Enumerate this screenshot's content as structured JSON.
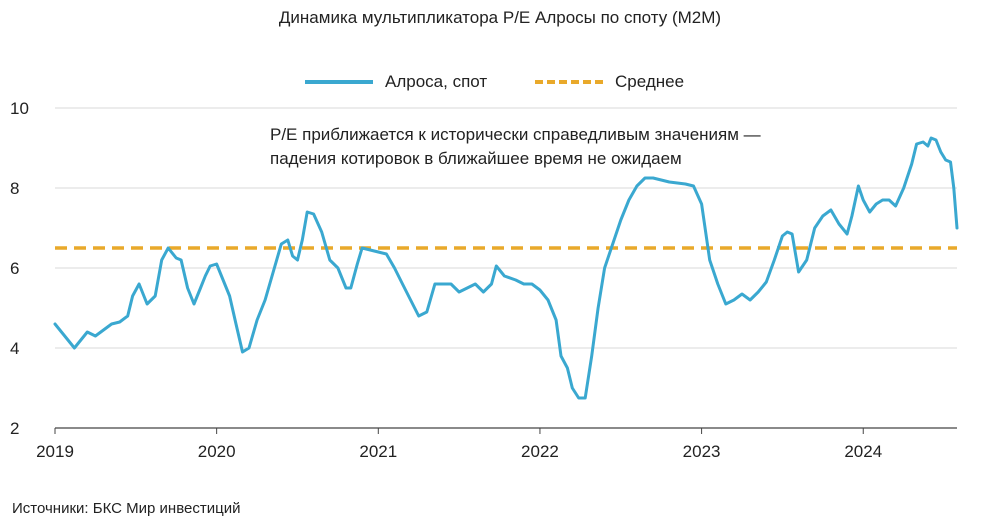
{
  "chart_data": {
    "type": "line",
    "title": "Динамика мультипликатора P/E Алросы по споту (M2M)",
    "annotation_lines": [
      "P/E приближается к исторически справедливым значениям —",
      "падения котировок в ближайшее время не ожидаем"
    ],
    "source": "Источники: БКС Мир инвестиций",
    "ylim": [
      2,
      10
    ],
    "xlim": [
      2019.0,
      2024.58
    ],
    "y_ticks": [
      "2",
      "4",
      "6",
      "8",
      "10"
    ],
    "x_ticks": [
      "2019",
      "2020",
      "2021",
      "2022",
      "2023",
      "2024"
    ],
    "grid": "horizontal",
    "legend_position": "top-center",
    "series": [
      {
        "name": "Алроса, спот",
        "color": "#3aa8d0",
        "style": "solid",
        "points": [
          [
            2019.0,
            4.6
          ],
          [
            2019.05,
            4.35
          ],
          [
            2019.12,
            4.0
          ],
          [
            2019.2,
            4.4
          ],
          [
            2019.25,
            4.3
          ],
          [
            2019.3,
            4.45
          ],
          [
            2019.35,
            4.6
          ],
          [
            2019.4,
            4.65
          ],
          [
            2019.45,
            4.8
          ],
          [
            2019.48,
            5.3
          ],
          [
            2019.52,
            5.6
          ],
          [
            2019.57,
            5.1
          ],
          [
            2019.62,
            5.3
          ],
          [
            2019.66,
            6.2
          ],
          [
            2019.7,
            6.5
          ],
          [
            2019.75,
            6.25
          ],
          [
            2019.78,
            6.2
          ],
          [
            2019.82,
            5.5
          ],
          [
            2019.86,
            5.1
          ],
          [
            2019.9,
            5.5
          ],
          [
            2019.93,
            5.8
          ],
          [
            2019.96,
            6.05
          ],
          [
            2020.0,
            6.1
          ],
          [
            2020.04,
            5.7
          ],
          [
            2020.08,
            5.3
          ],
          [
            2020.12,
            4.6
          ],
          [
            2020.16,
            3.9
          ],
          [
            2020.2,
            4.0
          ],
          [
            2020.25,
            4.7
          ],
          [
            2020.3,
            5.2
          ],
          [
            2020.35,
            5.9
          ],
          [
            2020.4,
            6.6
          ],
          [
            2020.44,
            6.7
          ],
          [
            2020.47,
            6.3
          ],
          [
            2020.5,
            6.2
          ],
          [
            2020.53,
            6.7
          ],
          [
            2020.56,
            7.4
          ],
          [
            2020.6,
            7.35
          ],
          [
            2020.65,
            6.9
          ],
          [
            2020.7,
            6.2
          ],
          [
            2020.75,
            6.0
          ],
          [
            2020.8,
            5.5
          ],
          [
            2020.83,
            5.5
          ],
          [
            2020.87,
            6.1
          ],
          [
            2020.9,
            6.5
          ],
          [
            2020.95,
            6.45
          ],
          [
            2021.0,
            6.4
          ],
          [
            2021.05,
            6.35
          ],
          [
            2021.1,
            6.0
          ],
          [
            2021.15,
            5.6
          ],
          [
            2021.2,
            5.2
          ],
          [
            2021.25,
            4.8
          ],
          [
            2021.3,
            4.9
          ],
          [
            2021.35,
            5.6
          ],
          [
            2021.4,
            5.6
          ],
          [
            2021.45,
            5.6
          ],
          [
            2021.5,
            5.4
          ],
          [
            2021.55,
            5.5
          ],
          [
            2021.6,
            5.6
          ],
          [
            2021.65,
            5.4
          ],
          [
            2021.7,
            5.6
          ],
          [
            2021.73,
            6.05
          ],
          [
            2021.78,
            5.8
          ],
          [
            2021.85,
            5.7
          ],
          [
            2021.9,
            5.6
          ],
          [
            2021.95,
            5.6
          ],
          [
            2022.0,
            5.45
          ],
          [
            2022.05,
            5.2
          ],
          [
            2022.1,
            4.7
          ],
          [
            2022.13,
            3.8
          ],
          [
            2022.17,
            3.5
          ],
          [
            2022.2,
            3.0
          ],
          [
            2022.24,
            2.75
          ],
          [
            2022.28,
            2.75
          ],
          [
            2022.32,
            3.8
          ],
          [
            2022.36,
            5.0
          ],
          [
            2022.4,
            6.0
          ],
          [
            2022.45,
            6.6
          ],
          [
            2022.5,
            7.2
          ],
          [
            2022.55,
            7.7
          ],
          [
            2022.6,
            8.05
          ],
          [
            2022.65,
            8.25
          ],
          [
            2022.7,
            8.25
          ],
          [
            2022.8,
            8.15
          ],
          [
            2022.9,
            8.1
          ],
          [
            2022.95,
            8.05
          ],
          [
            2023.0,
            7.6
          ],
          [
            2023.05,
            6.2
          ],
          [
            2023.1,
            5.6
          ],
          [
            2023.15,
            5.1
          ],
          [
            2023.2,
            5.2
          ],
          [
            2023.25,
            5.35
          ],
          [
            2023.3,
            5.2
          ],
          [
            2023.35,
            5.4
          ],
          [
            2023.4,
            5.65
          ],
          [
            2023.45,
            6.2
          ],
          [
            2023.5,
            6.8
          ],
          [
            2023.53,
            6.9
          ],
          [
            2023.56,
            6.85
          ],
          [
            2023.6,
            5.9
          ],
          [
            2023.65,
            6.2
          ],
          [
            2023.7,
            7.0
          ],
          [
            2023.75,
            7.3
          ],
          [
            2023.8,
            7.45
          ],
          [
            2023.85,
            7.1
          ],
          [
            2023.9,
            6.85
          ],
          [
            2023.93,
            7.3
          ],
          [
            2023.97,
            8.05
          ],
          [
            2024.0,
            7.7
          ],
          [
            2024.04,
            7.4
          ],
          [
            2024.08,
            7.6
          ],
          [
            2024.12,
            7.7
          ],
          [
            2024.16,
            7.7
          ],
          [
            2024.2,
            7.55
          ],
          [
            2024.25,
            8.0
          ],
          [
            2024.3,
            8.6
          ],
          [
            2024.33,
            9.1
          ],
          [
            2024.37,
            9.15
          ],
          [
            2024.4,
            9.05
          ],
          [
            2024.42,
            9.25
          ],
          [
            2024.45,
            9.2
          ],
          [
            2024.48,
            8.9
          ],
          [
            2024.51,
            8.7
          ],
          [
            2024.54,
            8.65
          ],
          [
            2024.56,
            8.0
          ],
          [
            2024.58,
            7.0
          ]
        ]
      },
      {
        "name": "Среднее",
        "color": "#e9a92a",
        "style": "dashed",
        "points": [
          [
            2019.0,
            6.5
          ],
          [
            2024.58,
            6.5
          ]
        ]
      }
    ]
  }
}
